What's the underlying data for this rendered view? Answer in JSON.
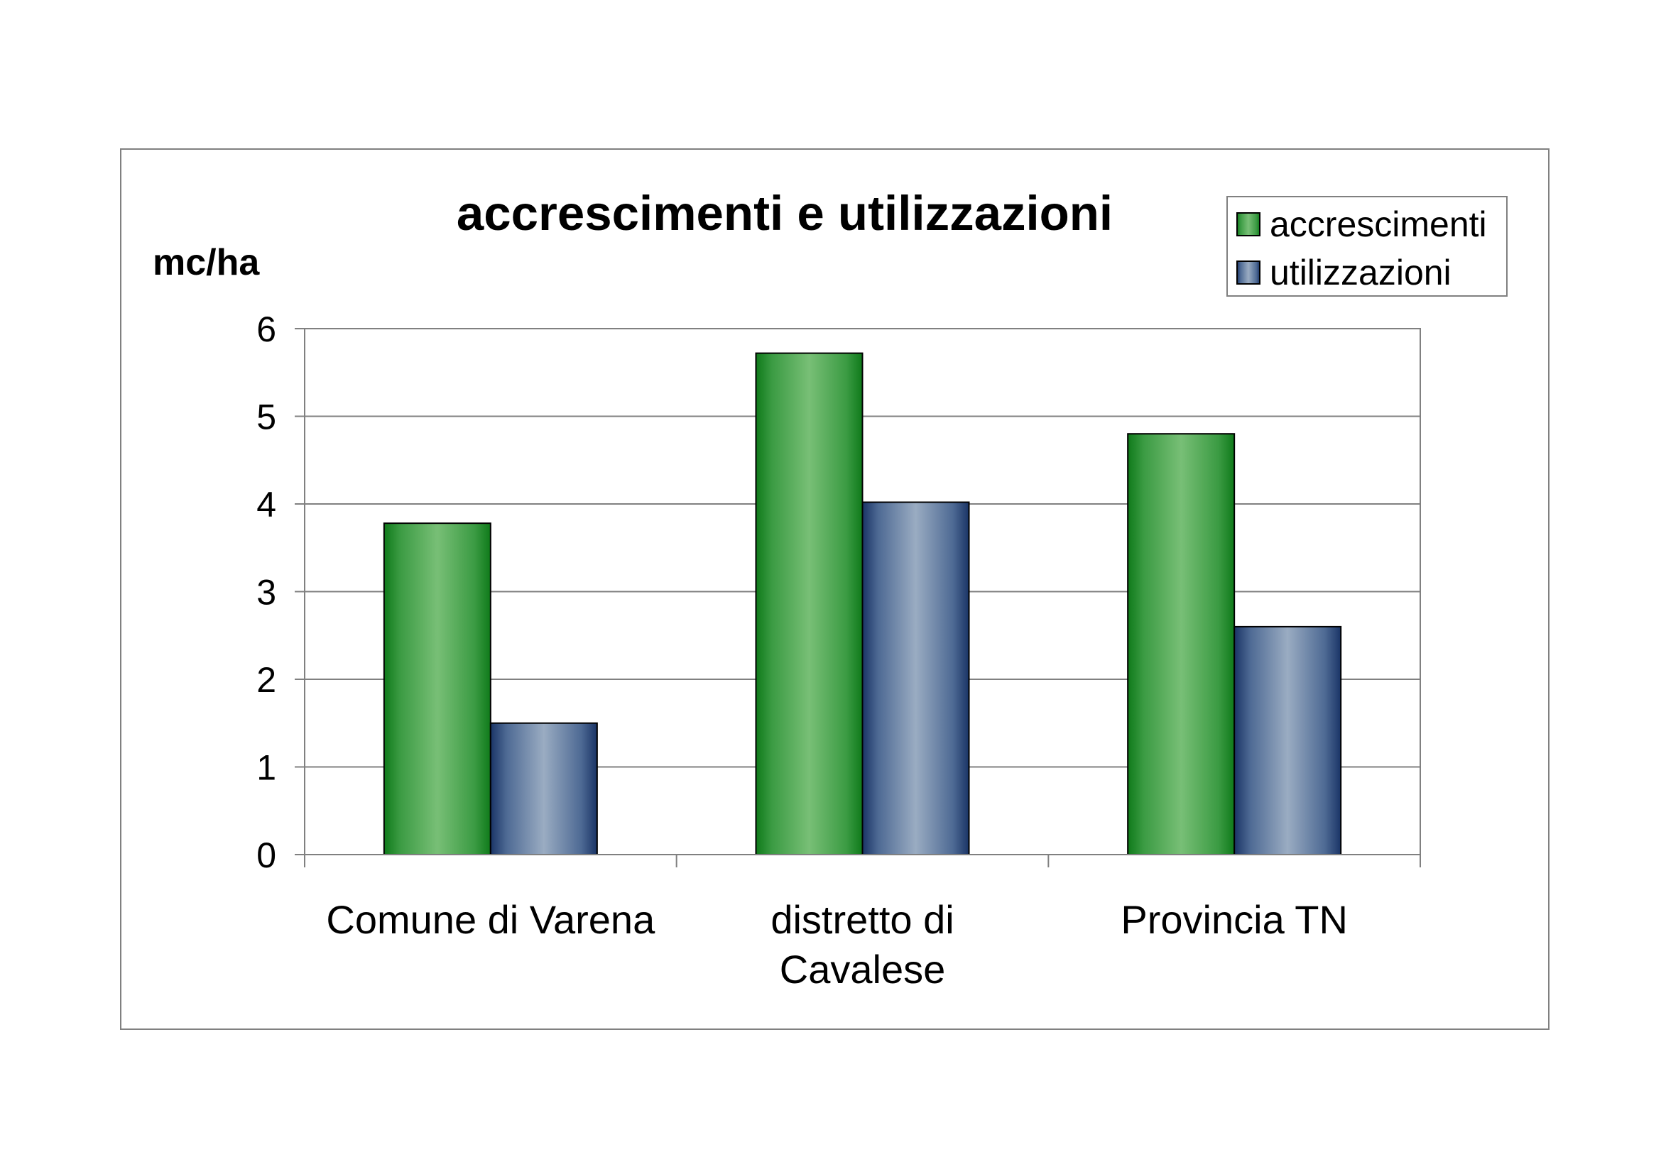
{
  "chart_data": {
    "type": "bar",
    "title": "accrescimenti e utilizzazioni",
    "ylabel": "mc/ha",
    "xlabel": "",
    "ylim": [
      0,
      6
    ],
    "yticks": [
      "0",
      "1",
      "2",
      "3",
      "4",
      "5",
      "6"
    ],
    "grid": true,
    "legend_position": "top-right",
    "categories": [
      [
        "Comune di Varena"
      ],
      [
        "distretto di",
        "Cavalese"
      ],
      [
        "Provincia TN"
      ]
    ],
    "series": [
      {
        "name": "accrescimenti",
        "values": [
          3.78,
          5.72,
          4.8
        ],
        "color": "#3f9a42"
      },
      {
        "name": "utilizzazioni",
        "values": [
          1.5,
          4.02,
          2.6
        ],
        "color": "#6b86a8"
      }
    ]
  }
}
